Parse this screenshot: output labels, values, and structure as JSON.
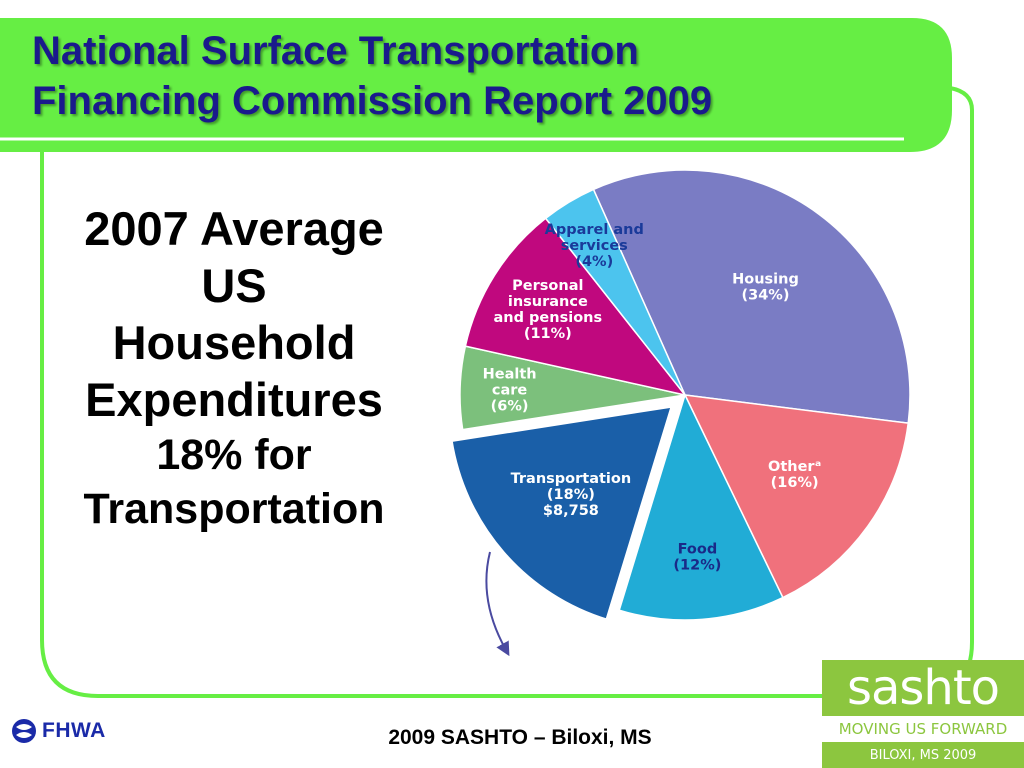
{
  "slide": {
    "title_line1": "National Surface Transportation",
    "title_line2": "Financing Commission Report 2009",
    "left_lines": [
      "2007 Average",
      "US",
      "Household",
      "Expenditures",
      "18% for",
      "Transportation"
    ],
    "footer": "2009 SASHTO – Biloxi, MS",
    "colors": {
      "accent_green": "#66ee44",
      "title_blue": "#1a1a8c"
    }
  },
  "logos": {
    "fhwa": {
      "text": "FHWA",
      "icon": "fhwa-shield-icon"
    },
    "sashto": {
      "name": "sashto",
      "tagline": "MOVING US FORWARD",
      "place": "BILOXI, MS 2009"
    }
  },
  "chart_data": {
    "type": "pie",
    "title": "",
    "slices": [
      {
        "label": "Housing",
        "lines": [
          "Housing",
          "(34%)"
        ],
        "value": 34,
        "color": "#7a7cc4",
        "text_color": "#ffffff",
        "exploded": false
      },
      {
        "label": "Other",
        "lines": [
          "Otherᵃ",
          "(16%)"
        ],
        "value": 16,
        "color": "#f0717c",
        "text_color": "#ffffff",
        "exploded": false
      },
      {
        "label": "Food",
        "lines": [
          "Food",
          "(12%)"
        ],
        "value": 12,
        "color": "#21acd6",
        "text_color": "#1a2a88",
        "exploded": false
      },
      {
        "label": "Transportation",
        "lines": [
          "Transportation",
          "(18%)",
          "$8,758"
        ],
        "value": 18,
        "color": "#1a5fa8",
        "text_color": "#ffffff",
        "exploded": true
      },
      {
        "label": "Health care",
        "lines": [
          "Health",
          "care",
          "(6%)"
        ],
        "value": 6,
        "color": "#7cc07c",
        "text_color": "#ffffff",
        "exploded": false
      },
      {
        "label": "Personal insurance and pensions",
        "lines": [
          "Personal",
          "insurance",
          "and pensions",
          "(11%)"
        ],
        "value": 11,
        "color": "#c0087e",
        "text_color": "#ffffff",
        "exploded": false
      },
      {
        "label": "Apparel and services",
        "lines": [
          "Apparel and",
          "services",
          "(4%)"
        ],
        "value": 4,
        "color": "#4cc4ee",
        "text_color": "#1a3a9a",
        "exploded": false
      }
    ]
  }
}
